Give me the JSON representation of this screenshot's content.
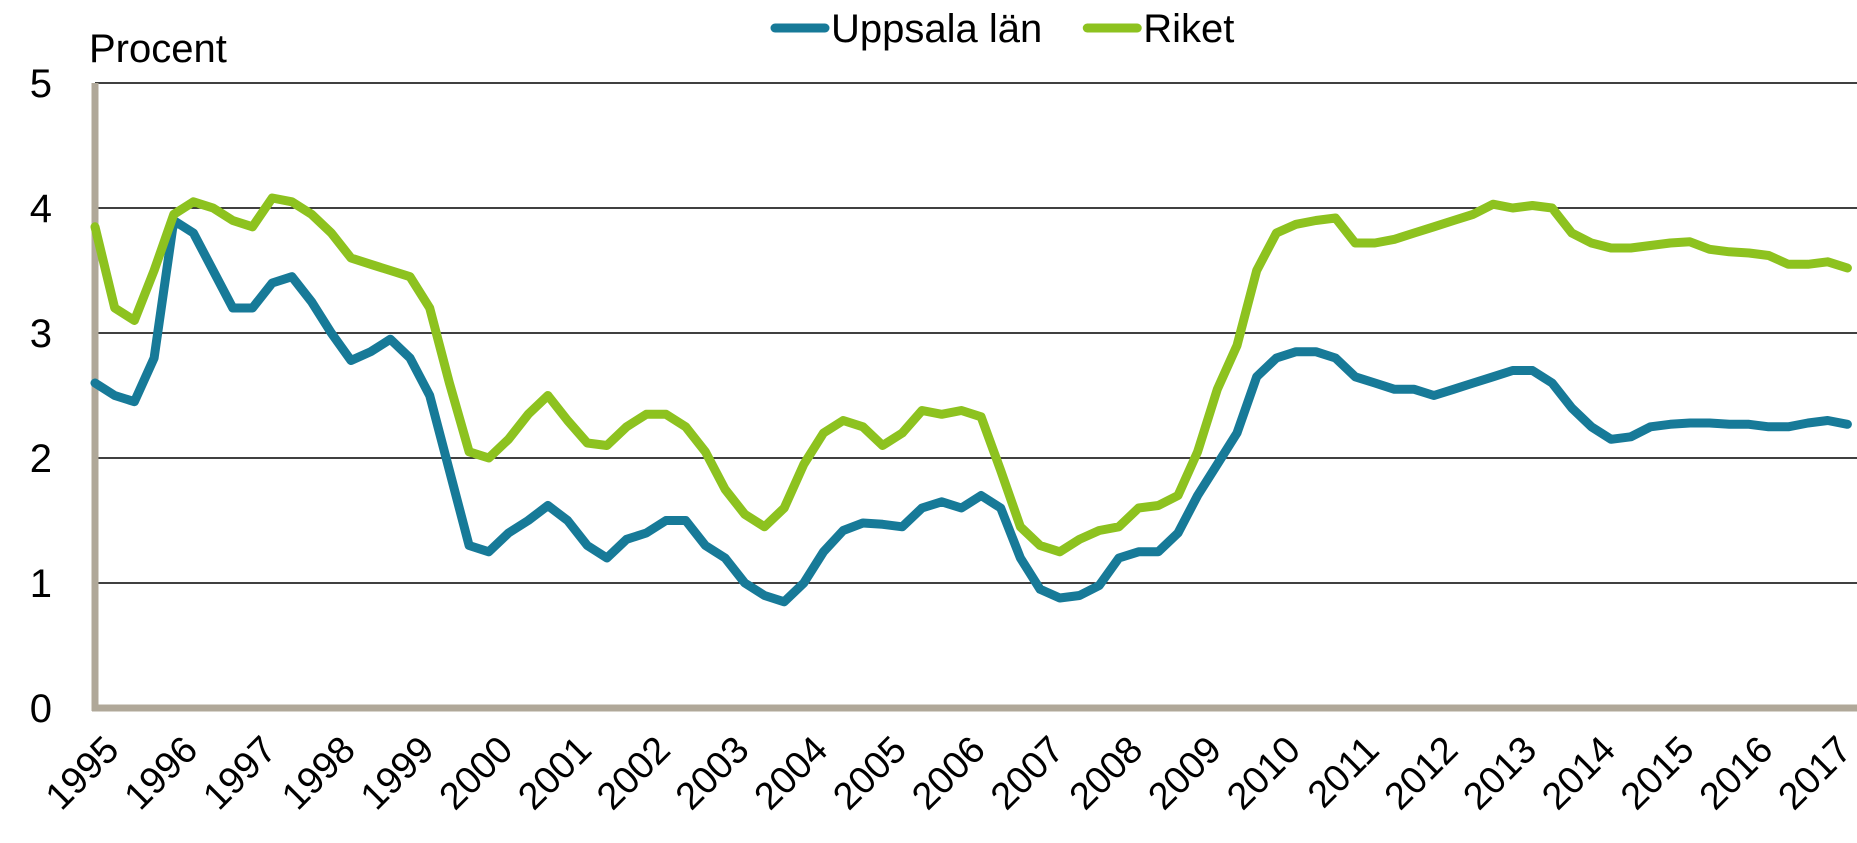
{
  "chart_data": {
    "type": "line",
    "y_label": "Procent",
    "categories": [
      "1995",
      null,
      null,
      null,
      "1996",
      null,
      null,
      null,
      "1997",
      null,
      null,
      null,
      "1998",
      null,
      null,
      null,
      "1999",
      null,
      null,
      null,
      "2000",
      null,
      null,
      null,
      "2001",
      null,
      null,
      null,
      "2002",
      null,
      null,
      null,
      "2003",
      null,
      null,
      null,
      "2004",
      null,
      null,
      null,
      "2005",
      null,
      null,
      null,
      "2006",
      null,
      null,
      null,
      "2007",
      null,
      null,
      null,
      "2008",
      null,
      null,
      null,
      "2009",
      null,
      null,
      null,
      "2010",
      null,
      null,
      null,
      "2011",
      null,
      null,
      null,
      "2012",
      null,
      null,
      null,
      "2013",
      null,
      null,
      null,
      "2014",
      null,
      null,
      null,
      "2015",
      null,
      null,
      null,
      "2016",
      null,
      null,
      null,
      "2017",
      null
    ],
    "series": [
      {
        "name": "Uppsala län",
        "color": "#177a98",
        "values": [
          2.6,
          2.5,
          2.45,
          2.8,
          3.9,
          3.8,
          3.5,
          3.2,
          3.2,
          3.4,
          3.45,
          3.25,
          3.0,
          2.78,
          2.85,
          2.95,
          2.8,
          2.5,
          1.9,
          1.3,
          1.25,
          1.4,
          1.5,
          1.62,
          1.5,
          1.3,
          1.2,
          1.35,
          1.4,
          1.5,
          1.5,
          1.3,
          1.2,
          1.0,
          0.9,
          0.85,
          1.0,
          1.25,
          1.42,
          1.48,
          1.47,
          1.45,
          1.6,
          1.65,
          1.6,
          1.7,
          1.6,
          1.2,
          0.95,
          0.88,
          0.9,
          0.98,
          1.2,
          1.25,
          1.25,
          1.4,
          1.7,
          1.95,
          2.2,
          2.65,
          2.8,
          2.85,
          2.85,
          2.8,
          2.65,
          2.6,
          2.55,
          2.55,
          2.5,
          2.55,
          2.6,
          2.65,
          2.7,
          2.7,
          2.6,
          2.4,
          2.25,
          2.15,
          2.17,
          2.25,
          2.27,
          2.28,
          2.28,
          2.27,
          2.27,
          2.25,
          2.25,
          2.28,
          2.3,
          2.27
        ]
      },
      {
        "name": "Riket",
        "color": "#8dc21f",
        "values": [
          3.85,
          3.2,
          3.1,
          3.5,
          3.95,
          4.05,
          4.0,
          3.9,
          3.85,
          4.08,
          4.05,
          3.95,
          3.8,
          3.6,
          3.55,
          3.5,
          3.45,
          3.2,
          2.6,
          2.05,
          2.0,
          2.15,
          2.35,
          2.5,
          2.3,
          2.12,
          2.1,
          2.25,
          2.35,
          2.35,
          2.25,
          2.05,
          1.75,
          1.55,
          1.45,
          1.6,
          1.95,
          2.2,
          2.3,
          2.25,
          2.1,
          2.2,
          2.38,
          2.35,
          2.38,
          2.33,
          1.9,
          1.45,
          1.3,
          1.25,
          1.35,
          1.42,
          1.45,
          1.6,
          1.62,
          1.7,
          2.05,
          2.55,
          2.9,
          3.5,
          3.8,
          3.87,
          3.9,
          3.92,
          3.72,
          3.72,
          3.75,
          3.8,
          3.85,
          3.9,
          3.95,
          4.03,
          4.0,
          4.02,
          4.0,
          3.8,
          3.72,
          3.68,
          3.68,
          3.7,
          3.72,
          3.73,
          3.67,
          3.65,
          3.64,
          3.62,
          3.55,
          3.55,
          3.57,
          3.52
        ]
      }
    ],
    "ylim": [
      0,
      5
    ],
    "yticks": [
      0,
      1,
      2,
      3,
      4,
      5
    ],
    "grid": true,
    "legend": "top"
  }
}
